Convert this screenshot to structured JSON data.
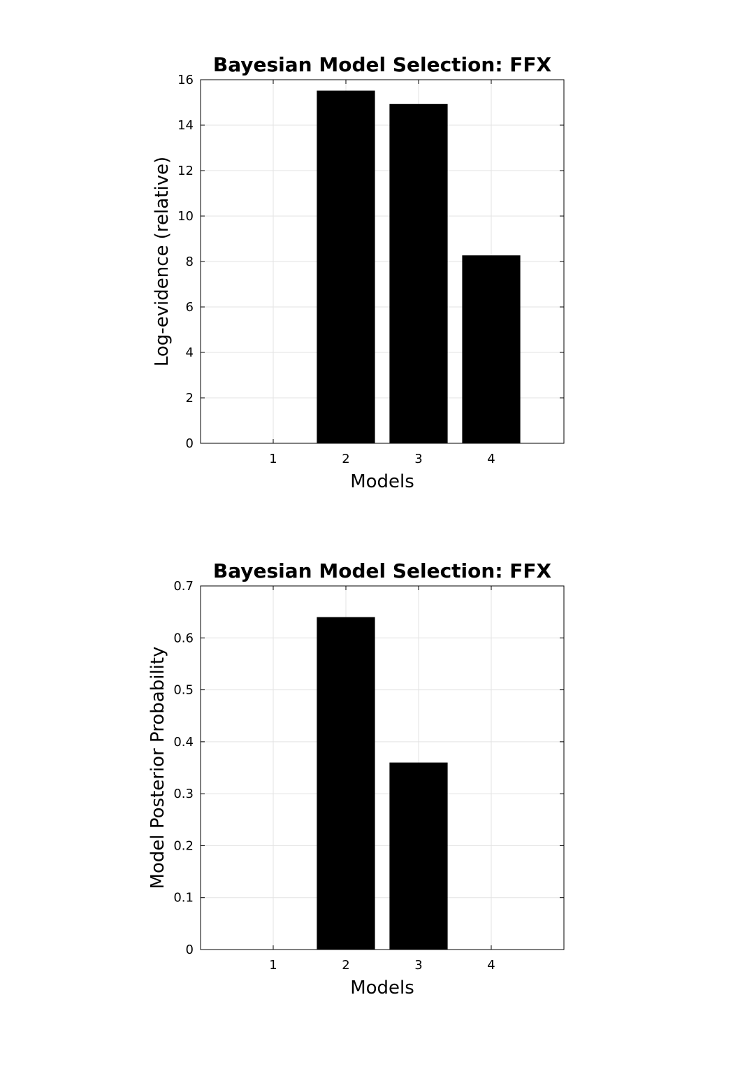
{
  "chart_data": [
    {
      "type": "bar",
      "title": "Bayesian Model Selection: FFX",
      "xlabel": "Models",
      "ylabel": "Log-evidence (relative)",
      "categories": [
        "1",
        "2",
        "3",
        "4"
      ],
      "values": [
        0,
        15.52,
        14.93,
        8.27
      ],
      "ylim": [
        0,
        16
      ],
      "xlim": [
        0,
        5
      ],
      "yticks": [
        "0",
        "2",
        "4",
        "6",
        "8",
        "10",
        "12",
        "14",
        "16"
      ],
      "grid": true,
      "bar_color": "#000000"
    },
    {
      "type": "bar",
      "title": "Bayesian Model Selection: FFX",
      "xlabel": "Models",
      "ylabel": "Model Posterior Probability",
      "categories": [
        "1",
        "2",
        "3",
        "4"
      ],
      "values": [
        0,
        0.64,
        0.36,
        0
      ],
      "ylim": [
        0,
        0.7
      ],
      "xlim": [
        0,
        5
      ],
      "yticks": [
        "0",
        "0.1",
        "0.2",
        "0.3",
        "0.4",
        "0.5",
        "0.6",
        "0.7"
      ],
      "grid": true,
      "bar_color": "#000000"
    }
  ]
}
